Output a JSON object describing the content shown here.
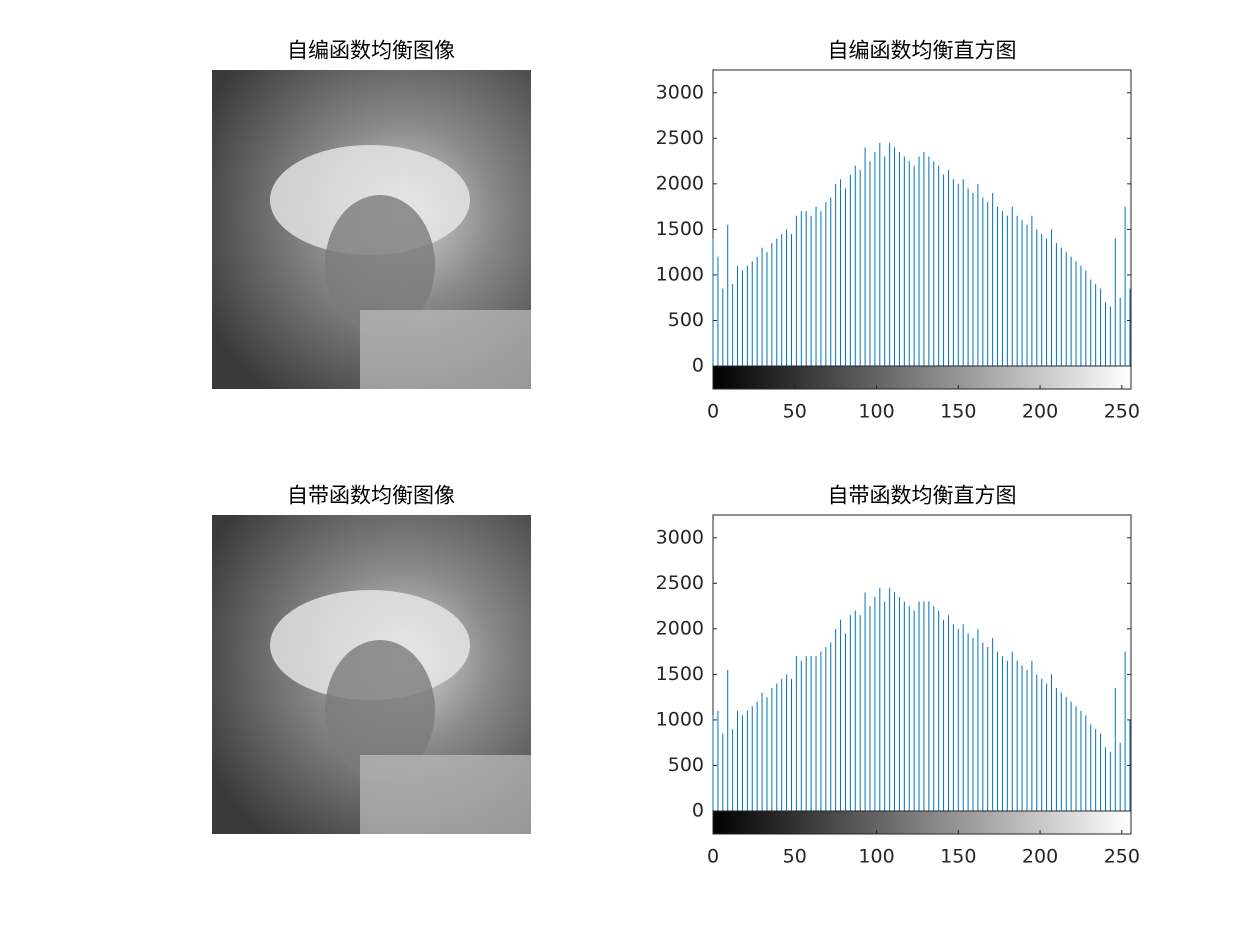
{
  "chart_data": [
    {
      "type": "image",
      "title": "自编函数均衡图像"
    },
    {
      "type": "stem",
      "title": "自编函数均衡直方图",
      "color": "#0072bd",
      "x": [
        0,
        3,
        6,
        9,
        12,
        15,
        18,
        21,
        24,
        27,
        30,
        33,
        36,
        39,
        42,
        45,
        48,
        51,
        54,
        57,
        60,
        63,
        66,
        69,
        72,
        75,
        78,
        81,
        84,
        87,
        90,
        93,
        96,
        99,
        102,
        105,
        108,
        111,
        114,
        117,
        120,
        123,
        126,
        129,
        132,
        135,
        138,
        141,
        144,
        147,
        150,
        153,
        156,
        159,
        162,
        165,
        168,
        171,
        174,
        177,
        180,
        183,
        186,
        189,
        192,
        195,
        198,
        201,
        204,
        207,
        210,
        213,
        216,
        219,
        222,
        225,
        228,
        231,
        234,
        237,
        240,
        243,
        246,
        249,
        252,
        255
      ],
      "values": [
        1400,
        1200,
        850,
        1550,
        900,
        1100,
        1050,
        1100,
        1150,
        1200,
        1300,
        1250,
        1350,
        1400,
        1450,
        1500,
        1450,
        1650,
        1700,
        1700,
        1650,
        1750,
        1700,
        1800,
        1850,
        2000,
        2050,
        1950,
        2100,
        2200,
        2150,
        2400,
        2250,
        2350,
        2450,
        2300,
        2450,
        2400,
        2350,
        2300,
        2250,
        2200,
        2300,
        2350,
        2300,
        2250,
        2200,
        2100,
        2150,
        2050,
        2000,
        2050,
        1950,
        1900,
        2000,
        1850,
        1800,
        1900,
        1750,
        1700,
        1650,
        1750,
        1650,
        1600,
        1550,
        1650,
        1500,
        1450,
        1400,
        1500,
        1350,
        1300,
        1250,
        1200,
        1150,
        1100,
        1050,
        950,
        900,
        850,
        700,
        650,
        1400,
        750,
        1750,
        850
      ],
      "xlim": [
        0,
        255
      ],
      "xticks": [
        0,
        50,
        100,
        150,
        200,
        250
      ],
      "ylim": [
        0,
        3250
      ],
      "yticks": [
        0,
        500,
        1000,
        1500,
        2000,
        2500,
        3000
      ]
    },
    {
      "type": "image",
      "title": "自带函数均衡图像"
    },
    {
      "type": "stem",
      "title": "自带函数均衡直方图",
      "color": "#0072bd",
      "x": [
        0,
        3,
        6,
        9,
        12,
        15,
        18,
        21,
        24,
        27,
        30,
        33,
        36,
        39,
        42,
        45,
        48,
        51,
        54,
        57,
        60,
        63,
        66,
        69,
        72,
        75,
        78,
        81,
        84,
        87,
        90,
        93,
        96,
        99,
        102,
        105,
        108,
        111,
        114,
        117,
        120,
        123,
        126,
        129,
        132,
        135,
        138,
        141,
        144,
        147,
        150,
        153,
        156,
        159,
        162,
        165,
        168,
        171,
        174,
        177,
        180,
        183,
        186,
        189,
        192,
        195,
        198,
        201,
        204,
        207,
        210,
        213,
        216,
        219,
        222,
        225,
        228,
        231,
        234,
        237,
        240,
        243,
        246,
        249,
        252,
        255
      ],
      "values": [
        1050,
        1100,
        850,
        1550,
        900,
        1100,
        1050,
        1100,
        1150,
        1200,
        1300,
        1250,
        1350,
        1400,
        1450,
        1500,
        1450,
        1700,
        1650,
        1700,
        1700,
        1700,
        1750,
        1800,
        1850,
        2000,
        2100,
        1950,
        2150,
        2200,
        2150,
        2400,
        2250,
        2350,
        2450,
        2300,
        2450,
        2400,
        2350,
        2300,
        2250,
        2200,
        2300,
        2300,
        2300,
        2250,
        2200,
        2100,
        2150,
        2050,
        2000,
        2050,
        1950,
        1900,
        2000,
        1850,
        1800,
        1900,
        1750,
        1700,
        1650,
        1750,
        1650,
        1600,
        1550,
        1650,
        1500,
        1450,
        1400,
        1500,
        1350,
        1300,
        1250,
        1200,
        1150,
        1100,
        1050,
        950,
        900,
        850,
        700,
        650,
        1350,
        750,
        1750,
        1000
      ],
      "xlim": [
        0,
        255
      ],
      "xticks": [
        0,
        50,
        100,
        150,
        200,
        250
      ],
      "ylim": [
        0,
        3250
      ],
      "yticks": [
        0,
        500,
        1000,
        1500,
        2000,
        2500,
        3000
      ]
    }
  ]
}
